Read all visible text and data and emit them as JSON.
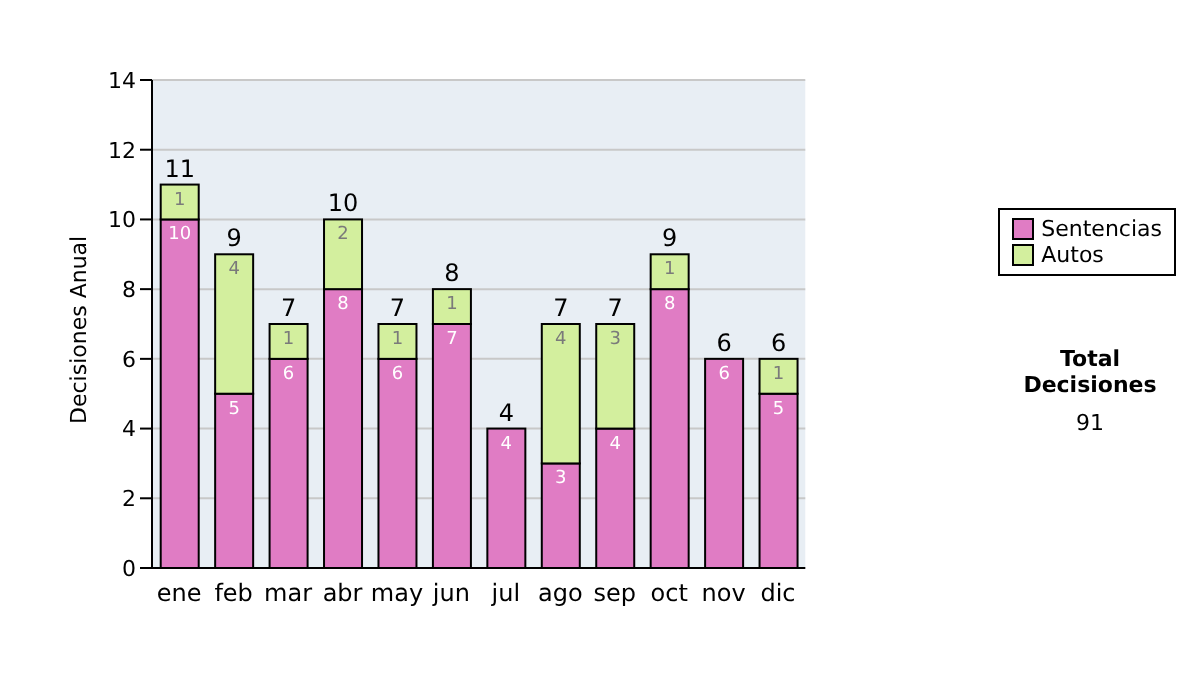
{
  "chart_data": {
    "type": "bar",
    "stacked": true,
    "ylabel": "Decisiones Anual",
    "categories": [
      "ene",
      "feb",
      "mar",
      "abr",
      "may",
      "jun",
      "jul",
      "ago",
      "sep",
      "oct",
      "nov",
      "dic"
    ],
    "series": [
      {
        "name": "Sentencias",
        "color": "#e07cc4",
        "values": [
          10,
          5,
          6,
          8,
          6,
          7,
          4,
          3,
          4,
          8,
          6,
          5
        ],
        "value_labels": [
          "10",
          "5",
          "6",
          "8",
          "6",
          "7",
          "4",
          "3",
          "4",
          "8",
          "6",
          "5"
        ]
      },
      {
        "name": "Autos",
        "color": "#d3ef9e",
        "values": [
          1,
          4,
          1,
          2,
          1,
          1,
          0,
          4,
          3,
          1,
          0,
          1
        ],
        "value_labels": [
          "1",
          "4",
          "1",
          "2",
          "1",
          "1",
          null,
          "4",
          "3",
          "1",
          null,
          "1"
        ]
      }
    ],
    "totals": [
      "11",
      "9",
      "7",
      "10",
      "7",
      "8",
      "4",
      "7",
      "7",
      "9",
      "6",
      "6"
    ],
    "ylim": [
      0,
      14
    ],
    "yticks": [
      0,
      2,
      4,
      6,
      8,
      10,
      12,
      14
    ],
    "grid": "y",
    "legend": "right",
    "annotations": [
      "Total Decisiones",
      "91"
    ]
  }
}
